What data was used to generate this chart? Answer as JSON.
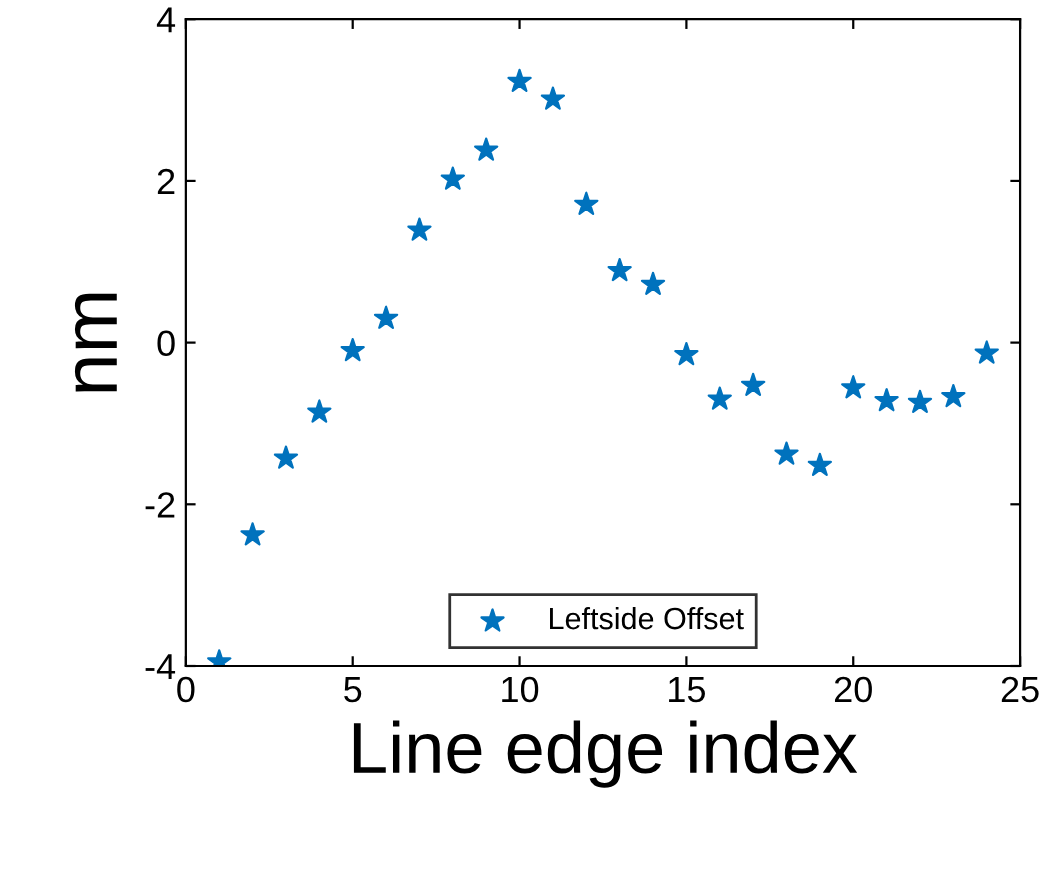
{
  "chart_data": {
    "type": "scatter",
    "xlabel": "Line edge index",
    "ylabel": "nm",
    "x": [
      1,
      2,
      3,
      4,
      5,
      6,
      7,
      8,
      9,
      10,
      11,
      12,
      13,
      14,
      15,
      16,
      17,
      18,
      19,
      20,
      21,
      22,
      23,
      24
    ],
    "series": [
      {
        "name": "Leftside Offset",
        "color": "#0072bd",
        "values": [
          -3.95,
          -2.38,
          -1.43,
          -0.86,
          -0.1,
          0.3,
          1.39,
          2.02,
          2.38,
          3.23,
          3.01,
          1.71,
          0.89,
          0.72,
          -0.15,
          -0.7,
          -0.53,
          -1.38,
          -1.52,
          -0.56,
          -0.72,
          -0.74,
          -0.67,
          -0.13
        ]
      }
    ],
    "xlim": [
      0,
      25
    ],
    "ylim": [
      -4,
      4
    ],
    "xticks": [
      0,
      5,
      10,
      15,
      20,
      25
    ],
    "yticks": [
      -4,
      -2,
      0,
      2,
      4
    ],
    "marker": "star",
    "legend": "bottom",
    "grid": false
  }
}
